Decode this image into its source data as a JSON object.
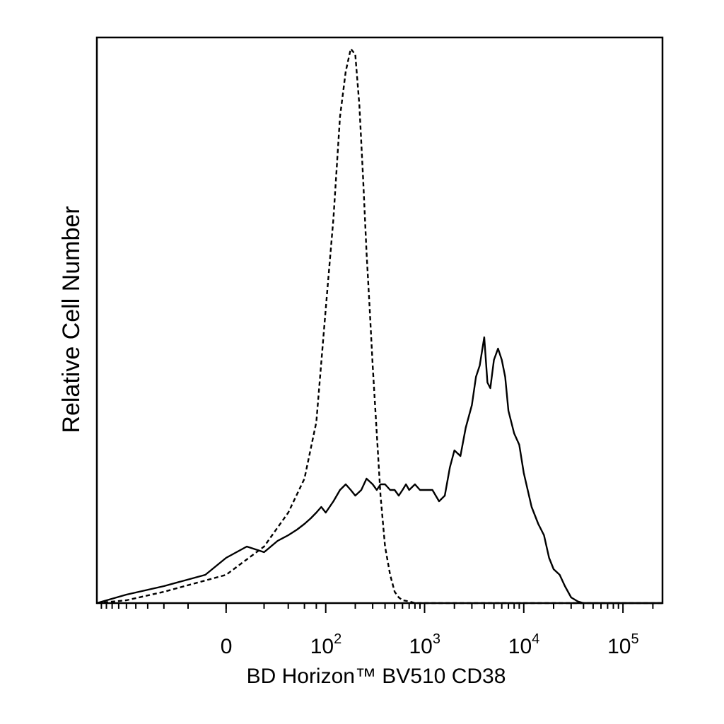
{
  "chart_data": {
    "type": "line",
    "xlabel": "BD Horizon™ BV510 CD38",
    "ylabel": "Relative Cell Number",
    "x_scale": "biexponential",
    "xlim": [
      -200,
      250000
    ],
    "ylim": [
      0,
      100
    ],
    "grid": false,
    "x_ticks": [
      {
        "value": 0,
        "base": "0",
        "exp": ""
      },
      {
        "value": 100,
        "base": "10",
        "exp": "2"
      },
      {
        "value": 1000,
        "base": "10",
        "exp": "3"
      },
      {
        "value": 10000,
        "base": "10",
        "exp": "4"
      },
      {
        "value": 100000,
        "base": "10",
        "exp": "5"
      }
    ],
    "series": [
      {
        "style": "solid",
        "x": [
          -200,
          -100,
          -40,
          -10,
          0,
          10,
          20,
          30,
          40,
          50,
          60,
          70,
          80,
          90,
          100,
          120,
          140,
          160,
          180,
          200,
          230,
          260,
          300,
          330,
          360,
          400,
          450,
          500,
          550,
          600,
          650,
          700,
          800,
          900,
          1000,
          1200,
          1400,
          1600,
          1800,
          2000,
          2300,
          2600,
          3000,
          3300,
          3600,
          4000,
          4300,
          4600,
          5000,
          5500,
          6000,
          6500,
          7000,
          8000,
          9000,
          10000,
          12000,
          14000,
          16000,
          18000,
          20000,
          23000,
          26000,
          30000,
          35000,
          40000,
          50000,
          100000,
          250000
        ],
        "y": [
          0,
          1.5,
          3,
          5,
          8,
          10,
          9,
          11,
          12,
          13,
          14,
          15,
          16,
          17,
          16,
          18,
          20,
          21,
          20,
          19,
          20,
          22,
          21,
          20,
          21,
          21,
          20,
          20,
          19,
          20,
          21,
          20,
          21,
          20,
          20,
          20,
          18,
          19,
          24,
          27,
          26,
          31,
          35,
          40,
          42,
          47,
          39,
          38,
          43,
          45,
          43,
          40,
          34,
          30,
          28,
          23,
          17,
          14,
          12,
          8,
          6,
          5,
          3,
          1,
          0.3,
          0,
          0,
          0,
          0
        ]
      },
      {
        "style": "dashed",
        "x": [
          -200,
          -100,
          -40,
          0,
          20,
          40,
          60,
          80,
          100,
          120,
          140,
          160,
          180,
          200,
          220,
          240,
          260,
          280,
          300,
          330,
          360,
          400,
          450,
          500,
          550,
          600,
          700,
          800,
          1000,
          2000,
          10000,
          250000
        ],
        "y": [
          0,
          0.5,
          2,
          5,
          10,
          16,
          22,
          32,
          52,
          68,
          86,
          94,
          98,
          97,
          88,
          75,
          62,
          52,
          42,
          30,
          19,
          10,
          5,
          2,
          1,
          0.5,
          0.3,
          0,
          0,
          0,
          0,
          0
        ]
      }
    ]
  }
}
